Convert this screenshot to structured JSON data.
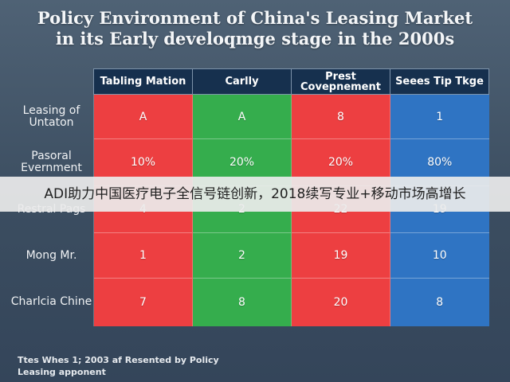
{
  "chart_data": {
    "type": "table",
    "title_lines": [
      "Policy Environment of China's Leasing Market",
      "in its Early develoqmge stage in the 2000s"
    ],
    "columns": [
      "Tabling Mation",
      "Carlly",
      "Prest Covepnement",
      "Seees Tip Tkge"
    ],
    "rows": [
      {
        "label": "Leasing of Untaton",
        "values": [
          "A",
          "A",
          "8",
          "1"
        ]
      },
      {
        "label": "Pasoral Evernment",
        "values": [
          "10%",
          "20%",
          "20%",
          "80%"
        ]
      },
      {
        "label": "Restral Pags",
        "values": [
          "4",
          "2",
          "22",
          "19"
        ]
      },
      {
        "label": "Mong Mr.",
        "values": [
          "1",
          "2",
          "19",
          "10"
        ]
      },
      {
        "label": "Charlcia Chine",
        "values": [
          "7",
          "8",
          "20",
          "8"
        ]
      }
    ],
    "column_colors": [
      "#ed3f41",
      "#35ad4d",
      "#ed3f41",
      "#2f74c3"
    ],
    "footnote": "Ttes Whes 1; 2003 af Resented by Policy Leasing apponent"
  },
  "overlay_banner": "ADI助力中国医疗电子全信号链创新，2018续写专业+移动市场高增长"
}
